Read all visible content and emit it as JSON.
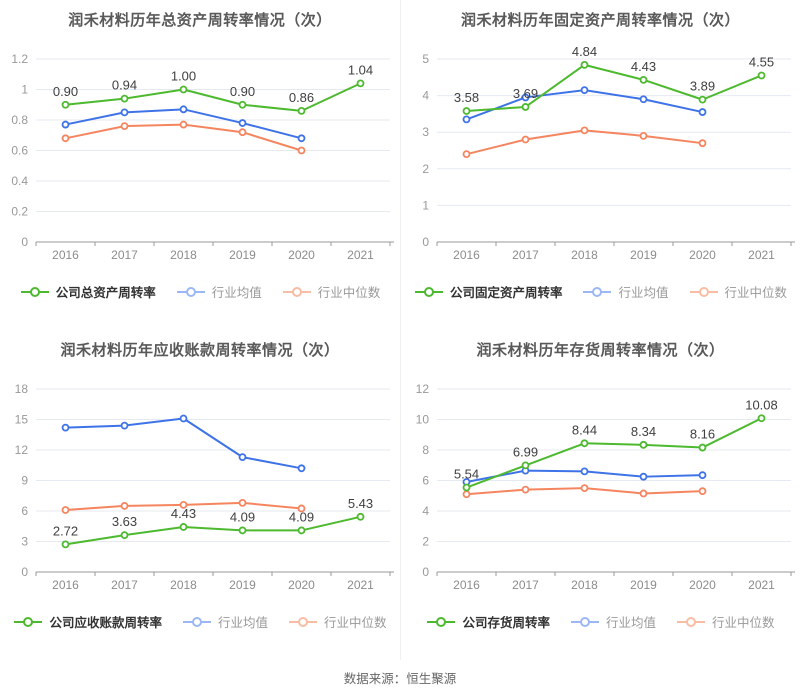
{
  "theme": {
    "grid_color": "#e4e9f2",
    "axis_color": "#999999",
    "axis_label_color": "#999999",
    "category_label_color": "#8c8c8c",
    "value_label_color": "#404040",
    "title_color": "#595959",
    "legend_primary_text_color": "#333333",
    "legend_secondary_text_color": "#999999",
    "source_text_color": "#666666",
    "company_color": "#4cb92e",
    "industry_mean_color": "#3e73e8",
    "industry_median_color": "#f5855f"
  },
  "footer": {
    "source_label": "数据来源：恒生聚源"
  },
  "chart_data": [
    {
      "type": "line",
      "title": "润禾材料历年总资产周转率情况（次）",
      "categories": [
        "2016",
        "2017",
        "2018",
        "2019",
        "2020",
        "2021"
      ],
      "ylim": [
        0,
        1.2
      ],
      "ystep": 0.2,
      "grid": true,
      "legend_position": "bottom",
      "series": [
        {
          "name": "公司总资产周转率",
          "color": "#4cb92e",
          "values": [
            0.9,
            0.94,
            1.0,
            0.9,
            0.86,
            1.04
          ],
          "data_labels": true
        },
        {
          "name": "行业均值",
          "color": "#3e73e8",
          "legend_color": "#9cb8f4",
          "values": [
            0.77,
            0.85,
            0.87,
            0.78,
            0.68
          ]
        },
        {
          "name": "行业中位数",
          "color": "#f5855f",
          "legend_color": "#f8bda4",
          "values": [
            0.68,
            0.76,
            0.77,
            0.72,
            0.6
          ]
        }
      ]
    },
    {
      "type": "line",
      "title": "润禾材料历年固定资产周转率情况（次）",
      "categories": [
        "2016",
        "2017",
        "2018",
        "2019",
        "2020",
        "2021"
      ],
      "ylim": [
        0,
        5
      ],
      "ystep": 1,
      "grid": true,
      "legend_position": "bottom",
      "series": [
        {
          "name": "公司固定资产周转率",
          "color": "#4cb92e",
          "values": [
            3.58,
            3.69,
            4.84,
            4.43,
            3.89,
            4.55
          ],
          "data_labels": true
        },
        {
          "name": "行业均值",
          "color": "#3e73e8",
          "legend_color": "#9cb8f4",
          "values": [
            3.35,
            3.95,
            4.15,
            3.9,
            3.55
          ]
        },
        {
          "name": "行业中位数",
          "color": "#f5855f",
          "legend_color": "#f8bda4",
          "values": [
            2.4,
            2.8,
            3.05,
            2.9,
            2.7
          ]
        }
      ]
    },
    {
      "type": "line",
      "title": "润禾材料历年应收账款周转率情况（次）",
      "categories": [
        "2016",
        "2017",
        "2018",
        "2019",
        "2020",
        "2021"
      ],
      "ylim": [
        0,
        18
      ],
      "ystep": 3,
      "grid": true,
      "legend_position": "bottom",
      "series": [
        {
          "name": "公司应收账款周转率",
          "color": "#4cb92e",
          "values": [
            2.72,
            3.63,
            4.43,
            4.09,
            4.09,
            5.43
          ],
          "data_labels": true
        },
        {
          "name": "行业均值",
          "color": "#3e73e8",
          "legend_color": "#9cb8f4",
          "values": [
            14.2,
            14.4,
            15.1,
            11.3,
            10.2
          ]
        },
        {
          "name": "行业中位数",
          "color": "#f5855f",
          "legend_color": "#f8bda4",
          "values": [
            6.1,
            6.5,
            6.6,
            6.8,
            6.25
          ]
        }
      ]
    },
    {
      "type": "line",
      "title": "润禾材料历年存货周转率情况（次）",
      "categories": [
        "2016",
        "2017",
        "2018",
        "2019",
        "2020",
        "2021"
      ],
      "ylim": [
        0,
        12
      ],
      "ystep": 2,
      "grid": true,
      "legend_position": "bottom",
      "series": [
        {
          "name": "公司存货周转率",
          "color": "#4cb92e",
          "values": [
            5.54,
            6.99,
            8.44,
            8.34,
            8.16,
            10.08
          ],
          "data_labels": true
        },
        {
          "name": "行业均值",
          "color": "#3e73e8",
          "legend_color": "#9cb8f4",
          "values": [
            5.9,
            6.65,
            6.6,
            6.25,
            6.35
          ]
        },
        {
          "name": "行业中位数",
          "color": "#f5855f",
          "legend_color": "#f8bda4",
          "values": [
            5.1,
            5.4,
            5.5,
            5.15,
            5.3
          ]
        }
      ]
    }
  ]
}
